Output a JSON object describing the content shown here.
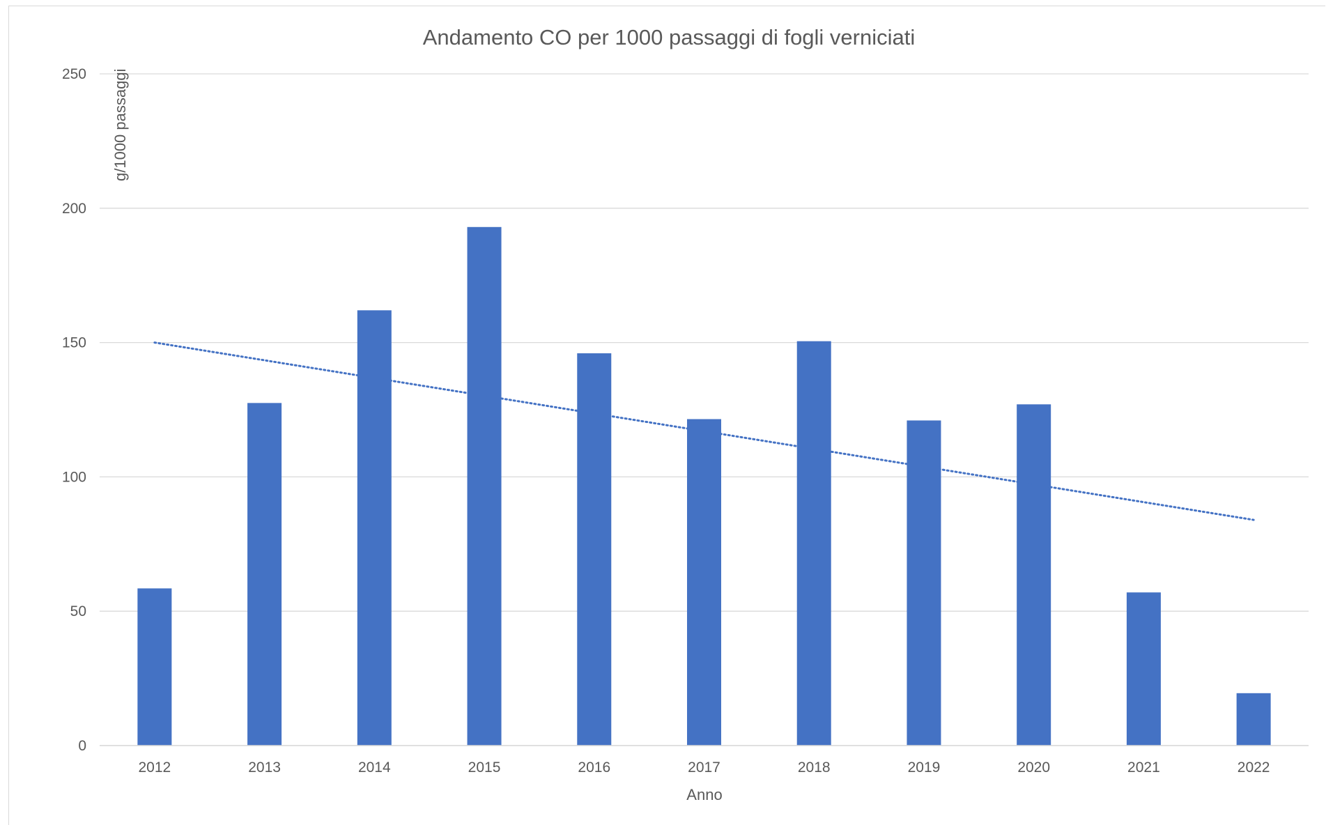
{
  "chart_data": {
    "type": "bar",
    "title": "Andamento CO per 1000 passaggi di fogli verniciati",
    "xlabel": "Anno",
    "ylabel": "g/1000 passaggi",
    "categories": [
      "2012",
      "2013",
      "2014",
      "2015",
      "2016",
      "2017",
      "2018",
      "2019",
      "2020",
      "2021",
      "2022"
    ],
    "values": [
      58.5,
      127.5,
      162,
      193,
      146,
      121.5,
      150.5,
      121,
      127,
      57,
      19.5
    ],
    "ylim": [
      0,
      250
    ],
    "yticks": [
      "0",
      "50",
      "100",
      "150",
      "200",
      "250"
    ],
    "grid": true,
    "legend": "none",
    "trendline": {
      "type": "linear",
      "style": "dotted",
      "start": 150,
      "end": 84
    },
    "colors": {
      "bar": "#4472C4",
      "trendline": "#4472C4",
      "grid": "#d9d9d9",
      "text": "#595959"
    }
  }
}
